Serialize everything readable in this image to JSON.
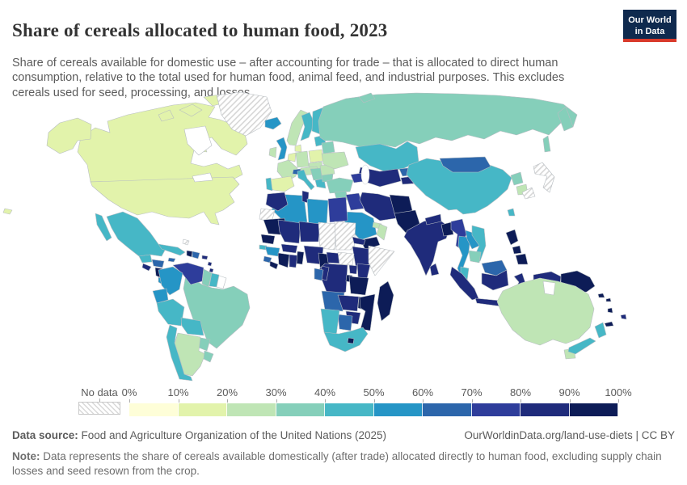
{
  "header": {
    "title": "Share of cereals allocated to human food, 2023",
    "logo": {
      "line1": "Our World",
      "line2": "in Data"
    }
  },
  "subtitle": "Share of cereals available for domestic use – after accounting for trade – that is allocated to direct human consumption, relative to the total used for human food, animal feed, and industrial purposes. This excludes cereals used for seed, processing, and losses.",
  "legend": {
    "no_data_label": "No data",
    "tick_labels": [
      "0%",
      "10%",
      "20%",
      "30%",
      "40%",
      "50%",
      "60%",
      "70%",
      "80%",
      "90%",
      "100%"
    ]
  },
  "footer": {
    "source_label": "Data source:",
    "source_text": " Food and Agriculture Organization of the United Nations (2025)",
    "link_text": "OurWorldinData.org/land-use-diets | CC BY",
    "note_label": "Note:",
    "note_text": " Data represents the share of cereals available domestically (after trade) allocated directly to human food, excluding supply chain losses and seed resown from the crop."
  },
  "chart_data": {
    "type": "choropleth",
    "title": "Share of cereals allocated to human food",
    "year": 2023,
    "unit": "%",
    "legend_position": "bottom",
    "bins": [
      "0–10%",
      "10–20%",
      "20–30%",
      "30–40%",
      "40–50%",
      "50–60%",
      "60–70%",
      "70–80%",
      "80–90%",
      "90–100%"
    ],
    "bin_colors": [
      "#fefed8",
      "#e2f3ab",
      "#bfe5b5",
      "#85cfba",
      "#46b7c6",
      "#2595c6",
      "#2c66ab",
      "#2e3d9b",
      "#1f2b7b",
      "#0d1c57"
    ],
    "no_data_style": "hatched",
    "countries": {
      "United States": 1,
      "Canada": 1,
      "Greenland": "no_data",
      "Iceland": 5,
      "Mexico": 4,
      "Guatemala": 4,
      "Honduras": 6,
      "El Salvador": 8,
      "Nicaragua": 9,
      "Costa Rica": 5,
      "Panama": 6,
      "Cuba": 4,
      "Jamaica": 6,
      "Haiti": 9,
      "Dominican Republic": 6,
      "Puerto Rico": 8,
      "Bahamas": "no_data",
      "Trinidad and Tobago": 8,
      "Lesser Antilles": 8,
      "Colombia": 5,
      "Venezuela": 7,
      "Guyana": 3,
      "Suriname": 4,
      "French Guiana": "blank",
      "Ecuador": 5,
      "Peru": 4,
      "Brazil": 3,
      "Bolivia": 4,
      "Paraguay": 3,
      "Uruguay": 3,
      "Argentina": 2,
      "Chile": 4,
      "Norway": 2,
      "Sweden": 4,
      "Finland": 4,
      "Denmark": 1,
      "United Kingdom": 5,
      "Ireland": 2,
      "Netherlands": 1,
      "Germany": 2,
      "Poland": 1,
      "Czechia": 2,
      "France": 2,
      "Switzerland": 6,
      "Austria and Hungary": 2,
      "Spain": 1,
      "Portugal": 4,
      "Italy": 4,
      "Balkans": 3,
      "Greece": 4,
      "Romania": 2,
      "Bulgaria": 3,
      "Belarus": 3,
      "Baltic states": 4,
      "Ukraine": 2,
      "Turkey": 3,
      "Russia": 3,
      "Kazakhstan": 4,
      "Turkmenistan and Uzbekistan": 8,
      "Kyrgyzstan": 6,
      "Tajikistan": 8,
      "Caucasus": 7,
      "Syria": 3,
      "Jordan": 3,
      "Iraq": 7,
      "Iran": 8,
      "Saudi Arabia": 5,
      "United Arab Emirates": 2,
      "Oman": 2,
      "Yemen": 9,
      "Afghanistan": 9,
      "Pakistan": 9,
      "India": 8,
      "Nepal": 8,
      "Bangladesh": 9,
      "Sri Lanka": 8,
      "Myanmar": 7,
      "Thailand": 5,
      "Laos": 5,
      "Vietnam": 4,
      "Cambodia": 3,
      "Malaysia": 4,
      "Malaysia (Borneo)": 6,
      "Indonesia": 8,
      "Timor-Leste": 4,
      "Papua New Guinea": 9,
      "Philippines": 9,
      "Solomon Islands": 9,
      "Vanuatu": 9,
      "Fiji": 8,
      "New Caledonia": 9,
      "China": 4,
      "Mongolia": 6,
      "North Korea": 3,
      "South Korea": 2,
      "Japan": "no_data",
      "Taiwan": 4,
      "Australia": 2,
      "New Zealand": 4,
      "Morocco": 8,
      "Algeria": 5,
      "Tunisia": 8,
      "Libya": 5,
      "Egypt": 7,
      "Western Sahara": "no_data",
      "Mauritania": 9,
      "Mali": 8,
      "Niger": 8,
      "Chad": "no_data",
      "Sudan": "no_data",
      "South Sudan": "no_data",
      "Eritrea": 8,
      "Ethiopia": 8,
      "Somalia": "no_data",
      "Senegal": 9,
      "Guinea-Bissau": 4,
      "Guinea": 5,
      "Sierra Leone": 6,
      "Liberia": 9,
      "Cote d'Ivoire": 9,
      "Ghana": 8,
      "Togo and Benin": 9,
      "Burkina Faso": 8,
      "Nigeria": 8,
      "Cameroon": 9,
      "Central African Republic": 8,
      "Gabon": 6,
      "Congo": 8,
      "DR Congo": 8,
      "Uganda": 8,
      "Kenya": 8,
      "Rwanda and Burundi": 9,
      "Tanzania": 9,
      "Angola": 6,
      "Zambia": 8,
      "Malawi": 9,
      "Mozambique": 9,
      "Zimbabwe": 8,
      "Botswana": 6,
      "Namibia": 4,
      "South Africa": 4,
      "Lesotho": 9,
      "Madagascar": 9
    }
  }
}
